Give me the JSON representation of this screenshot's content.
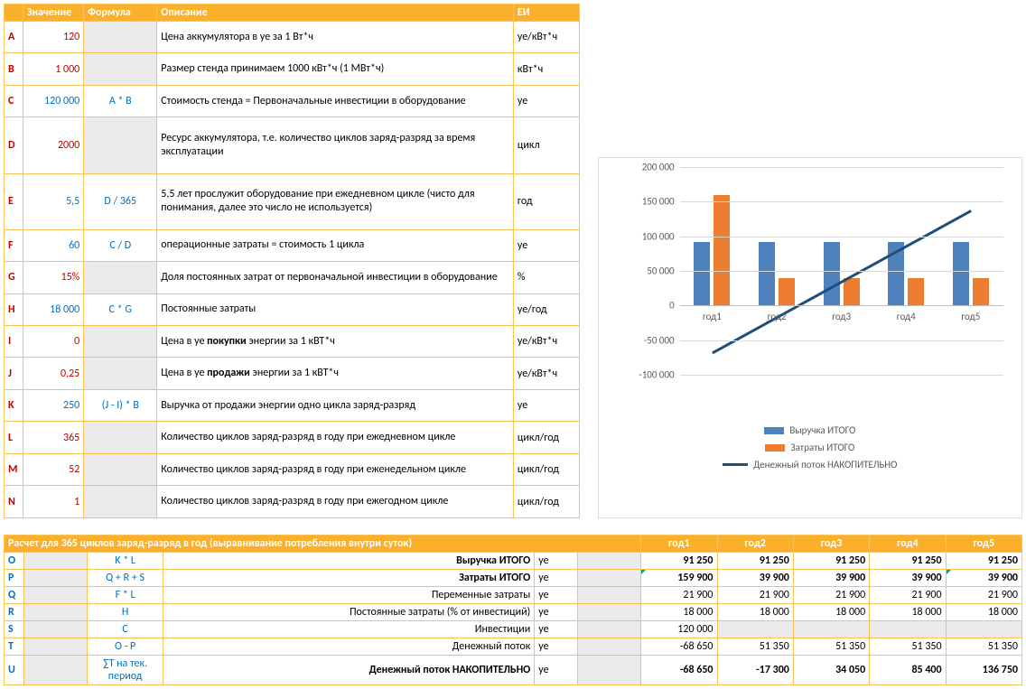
{
  "params": {
    "headers": [
      "",
      "Значение",
      "Формула",
      "Описание",
      "ЕИ"
    ],
    "rows": [
      {
        "letter": "A",
        "value": "120",
        "val_color": "red",
        "formula": "",
        "desc": "Цена аккумулятора в уе за 1 Вт*ч",
        "unit": "уе/кВт*ч"
      },
      {
        "letter": "B",
        "value": "1 000",
        "val_color": "red",
        "formula": "",
        "desc": "Размер стенда принимаем 1000 кВт*ч (1 МВт*ч)",
        "unit": "кВт*ч"
      },
      {
        "letter": "C",
        "value": "120 000",
        "val_color": "blue",
        "formula": "A * B",
        "desc": "Стоимость стенда = Первоначальные инвестиции в оборудование",
        "unit": "уе"
      },
      {
        "letter": "D",
        "value": "2000",
        "val_color": "red",
        "formula": "",
        "desc": "Ресурс аккумулятора, т.е. количество циклов заряд-разряд за время эксплуатации",
        "unit": "цикл"
      },
      {
        "letter": "E",
        "value": "5,5",
        "val_color": "blue",
        "formula": "D / 365",
        "desc": "5,5 лет прослужит оборудование при ежедневном цикле (чисто для понимания, далее это число не используется)",
        "unit": "год"
      },
      {
        "letter": "F",
        "value": "60",
        "val_color": "blue",
        "formula": "C / D",
        "desc": "операционные затраты = стоимость 1 цикла",
        "unit": "уе"
      },
      {
        "letter": "G",
        "value": "15%",
        "val_color": "red",
        "formula": "",
        "desc": "Доля постоянных затрат от первоначальной инвестиции в оборудование",
        "unit": "%"
      },
      {
        "letter": "H",
        "value": "18 000",
        "val_color": "blue",
        "formula": "C * G",
        "desc": "Постоянные затраты",
        "unit": "уе/год"
      },
      {
        "letter": "I",
        "value": "0",
        "val_color": "red",
        "formula": "",
        "desc_html": "Цена в уе <b>покупки</b> энергии за 1 кВТ*ч",
        "unit": "уе/кВт*ч"
      },
      {
        "letter": "J",
        "value": "0,25",
        "val_color": "red",
        "formula": "",
        "desc_html": "Цена в уе <b>продажи</b> энергии за 1 кВТ*ч",
        "unit": "уе/кВт*ч"
      },
      {
        "letter": "K",
        "value": "250",
        "val_color": "blue",
        "formula": "(J - I) * B",
        "desc": "Выручка от продажи энергии одно цикла заряд-разряд",
        "unit": "уе"
      },
      {
        "letter": "L",
        "value": "365",
        "val_color": "red",
        "formula": "",
        "desc": "Количество циклов заряд-разряд в году при ежедневном цикле",
        "unit": "цикл/год"
      },
      {
        "letter": "M",
        "value": "52",
        "val_color": "red",
        "formula": "",
        "desc": "Количество циклов заряд-разряд в году при еженедельном цикле",
        "unit": "цикл/год"
      },
      {
        "letter": "N",
        "value": "1",
        "val_color": "red",
        "formula": "",
        "desc": "Количество циклов заряд-разряд в году при ежегодном цикле",
        "unit": "цикл/год"
      }
    ]
  },
  "chart": {
    "type": "bar+line",
    "categories": [
      "год1",
      "год2",
      "год3",
      "год4",
      "год5"
    ],
    "revenue": [
      91250,
      91250,
      91250,
      91250,
      91250
    ],
    "costs": [
      159900,
      39900,
      39900,
      39900,
      39900
    ],
    "cumcf": [
      -68650,
      -17300,
      34050,
      85400,
      136750
    ],
    "y_min": -100000,
    "y_max": 200000,
    "y_step": 50000,
    "bar_color_blue": "#4f81bd",
    "bar_color_orange": "#ed7d31",
    "line_color": "#1f4e79",
    "grid_color": "#d9d9d9",
    "background": "#ffffff",
    "label_fontsize": 11,
    "legend": [
      "Выручка ИТОГО",
      "Затраты ИТОГО",
      "Денежный поток НАКОПИТЕЛЬНО"
    ]
  },
  "bottom": {
    "title": "Расчет для 365 циклов заряд-разряд в год (выравнивание потребления внутри суток)",
    "year_headers": [
      "год1",
      "год2",
      "год3",
      "год4",
      "год5"
    ],
    "rows": [
      {
        "letter": "O",
        "formula": "K * L",
        "desc": "Выручка ИТОГО",
        "unit": "уе",
        "bold": true,
        "vals": [
          "91 250",
          "91 250",
          "91 250",
          "91 250",
          "91 250"
        ],
        "gray": []
      },
      {
        "letter": "P",
        "formula": "Q + R + S",
        "desc": "Затраты ИТОГО",
        "unit": "уе",
        "bold": true,
        "vals": [
          "159 900",
          "39 900",
          "39 900",
          "39 900",
          "39 900"
        ],
        "tick": [
          0,
          4
        ],
        "gray": []
      },
      {
        "letter": "Q",
        "formula": "F * L",
        "desc": "Переменные затраты",
        "unit": "уе",
        "vals": [
          "21 900",
          "21 900",
          "21 900",
          "21 900",
          "21 900"
        ],
        "gray": []
      },
      {
        "letter": "R",
        "formula": "H",
        "desc": "Постоянные затраты (% от инвестиций)",
        "unit": "уе",
        "vals": [
          "18 000",
          "18 000",
          "18 000",
          "18 000",
          "18 000"
        ],
        "gray": []
      },
      {
        "letter": "S",
        "formula": "C",
        "desc": "Инвестиции",
        "unit": "уе",
        "vals": [
          "120 000",
          "",
          "",
          "",
          ""
        ],
        "gray": [
          1,
          2,
          3,
          4
        ]
      },
      {
        "letter": "T",
        "formula": "O - P",
        "desc": "Денежный поток",
        "unit": "уе",
        "vals": [
          "-68 650",
          "51 350",
          "51 350",
          "51 350",
          "51 350"
        ],
        "gray": []
      },
      {
        "letter": "U",
        "formula": "∑T на тек. период",
        "desc": "Денежный поток НАКОПИТЕЛЬНО",
        "unit": "уе",
        "bold": true,
        "vals": [
          "-68 650",
          "-17 300",
          "34 050",
          "85 400",
          "136 750"
        ],
        "gray": []
      }
    ]
  }
}
